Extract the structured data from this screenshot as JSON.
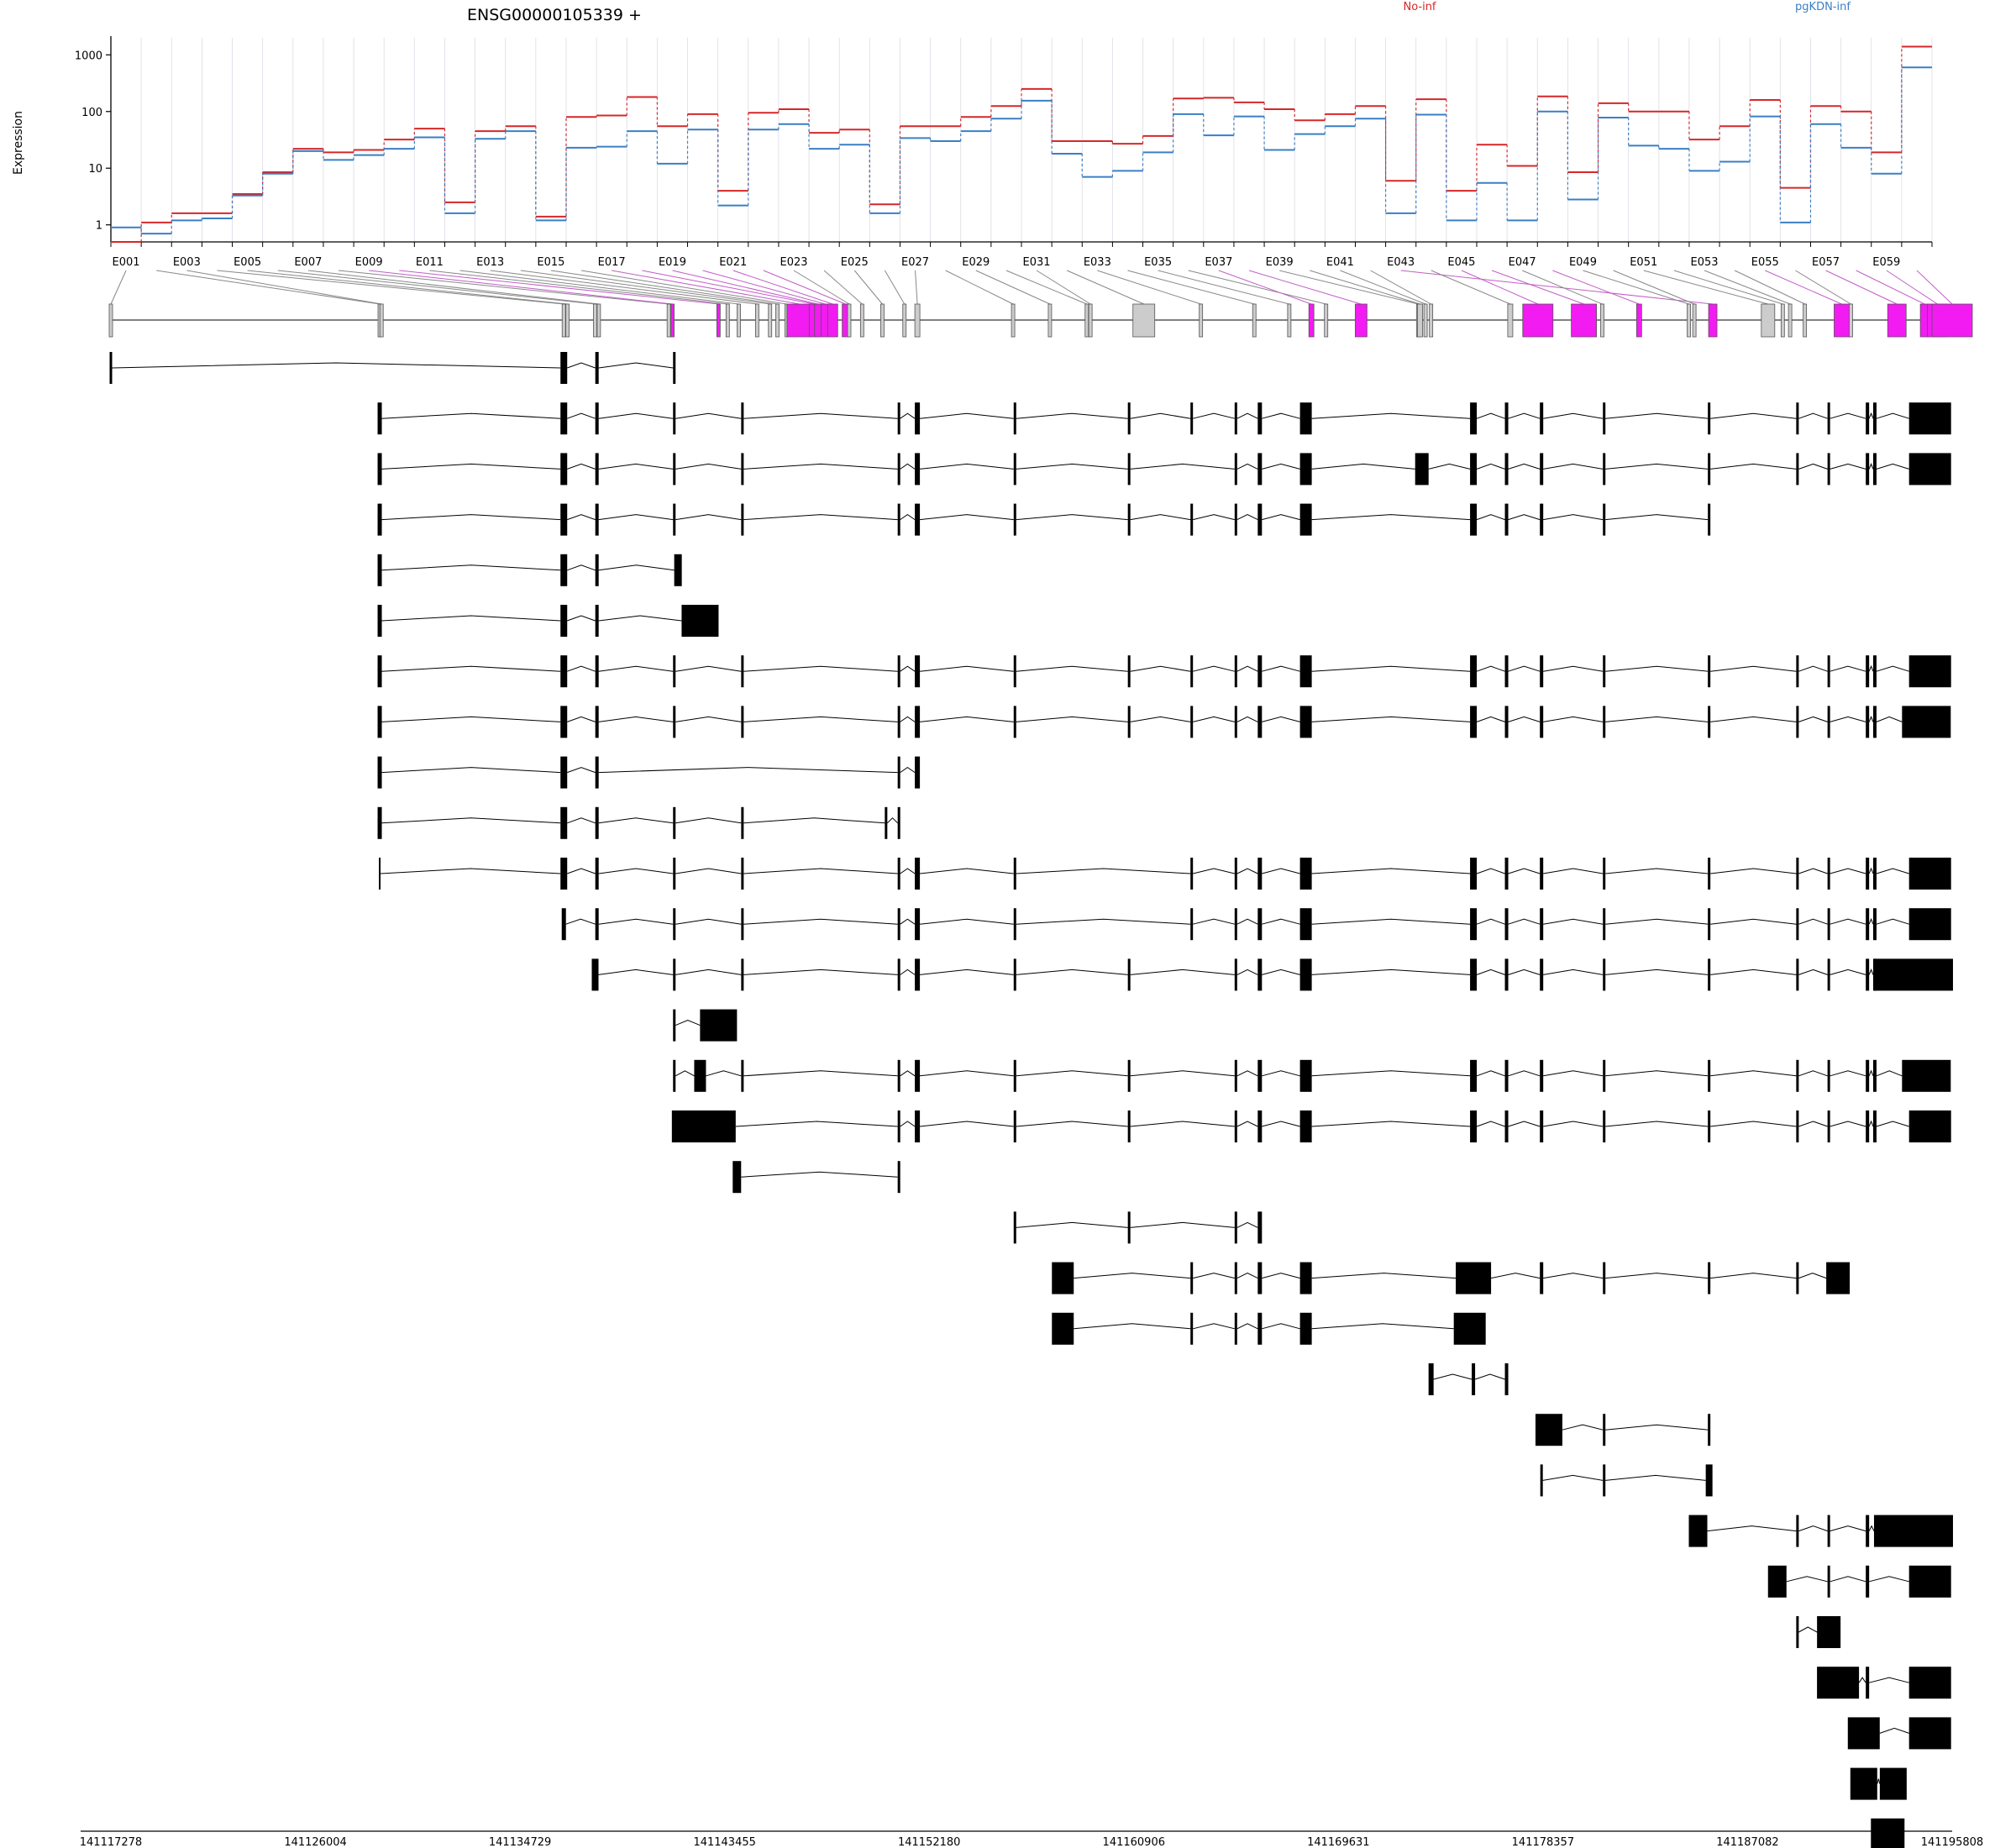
{
  "chart_data": {
    "type": "line",
    "title": "ENSG00000105339 +",
    "ylabel": "Expression",
    "yscale": "log",
    "ylim": [
      0.5,
      2000
    ],
    "yticks": [
      "1",
      "10",
      "100",
      "1000"
    ],
    "exon_labels": [
      "E001",
      "E003",
      "E005",
      "E007",
      "E009",
      "E011",
      "E013",
      "E015",
      "E017",
      "E019",
      "E021",
      "E023",
      "E025",
      "E027",
      "E029",
      "E031",
      "E033",
      "E035",
      "E037",
      "E039",
      "E041",
      "E043",
      "E045",
      "E047",
      "E049",
      "E051",
      "E053",
      "E055",
      "E057",
      "E059"
    ],
    "series": [
      {
        "name": "No-inf",
        "color": "#d62728",
        "values": [
          0.5,
          1.1,
          1.6,
          1.6,
          3.5,
          8.5,
          22,
          19,
          21,
          32,
          50,
          2.5,
          45,
          55,
          1.4,
          80,
          85,
          180,
          55,
          90,
          4,
          95,
          110,
          42,
          48,
          2.3,
          55,
          55,
          80,
          125,
          250,
          30,
          30,
          27,
          37,
          170,
          175,
          145,
          110,
          70,
          90,
          125,
          6,
          165,
          4,
          26,
          11,
          185,
          8.5,
          140,
          100,
          100,
          32,
          55,
          160,
          4.5,
          125,
          100,
          19,
          1400
        ]
      },
      {
        "name": "pgKDN-inf",
        "color": "#3a7fc4",
        "values": [
          0.9,
          0.7,
          1.2,
          1.3,
          3.3,
          8,
          20,
          14,
          17,
          22,
          35,
          1.6,
          33,
          45,
          1.2,
          23,
          24,
          45,
          12,
          48,
          2.2,
          48,
          60,
          22,
          26,
          1.6,
          34,
          30,
          45,
          75,
          155,
          18,
          7,
          9,
          19,
          90,
          38,
          82,
          21,
          40,
          55,
          75,
          1.6,
          88,
          1.2,
          5.5,
          1.2,
          100,
          2.8,
          78,
          25,
          22,
          9,
          13,
          82,
          1.1,
          60,
          23,
          8,
          600
        ]
      }
    ],
    "gene_model": {
      "exon_colors": [
        "gray",
        "gray",
        "gray",
        "gray",
        "gray",
        "gray",
        "gray",
        "gray",
        "magenta",
        "magenta",
        "gray",
        "gray",
        "gray",
        "gray",
        "gray",
        "gray",
        "magenta",
        "magenta",
        "magenta",
        "magenta",
        "magenta",
        "magenta",
        "gray",
        "gray",
        "gray",
        "gray",
        "gray",
        "gray",
        "gray",
        "gray",
        "gray",
        "gray",
        "gray",
        "gray",
        "gray",
        "gray",
        "magenta",
        "magenta",
        "gray",
        "gray",
        "gray",
        "gray",
        "magenta",
        "gray",
        "magenta",
        "magenta",
        "gray",
        "magenta",
        "gray",
        "gray",
        "gray",
        "gray",
        "gray",
        "gray",
        "magenta",
        "gray",
        "magenta",
        "magenta",
        "magenta",
        "magenta"
      ]
    },
    "x_ticks": [
      "141117278",
      "141126004",
      "141134729",
      "141143455",
      "141152180",
      "141160906",
      "141169631",
      "141178357",
      "141187082",
      "141195808"
    ]
  }
}
